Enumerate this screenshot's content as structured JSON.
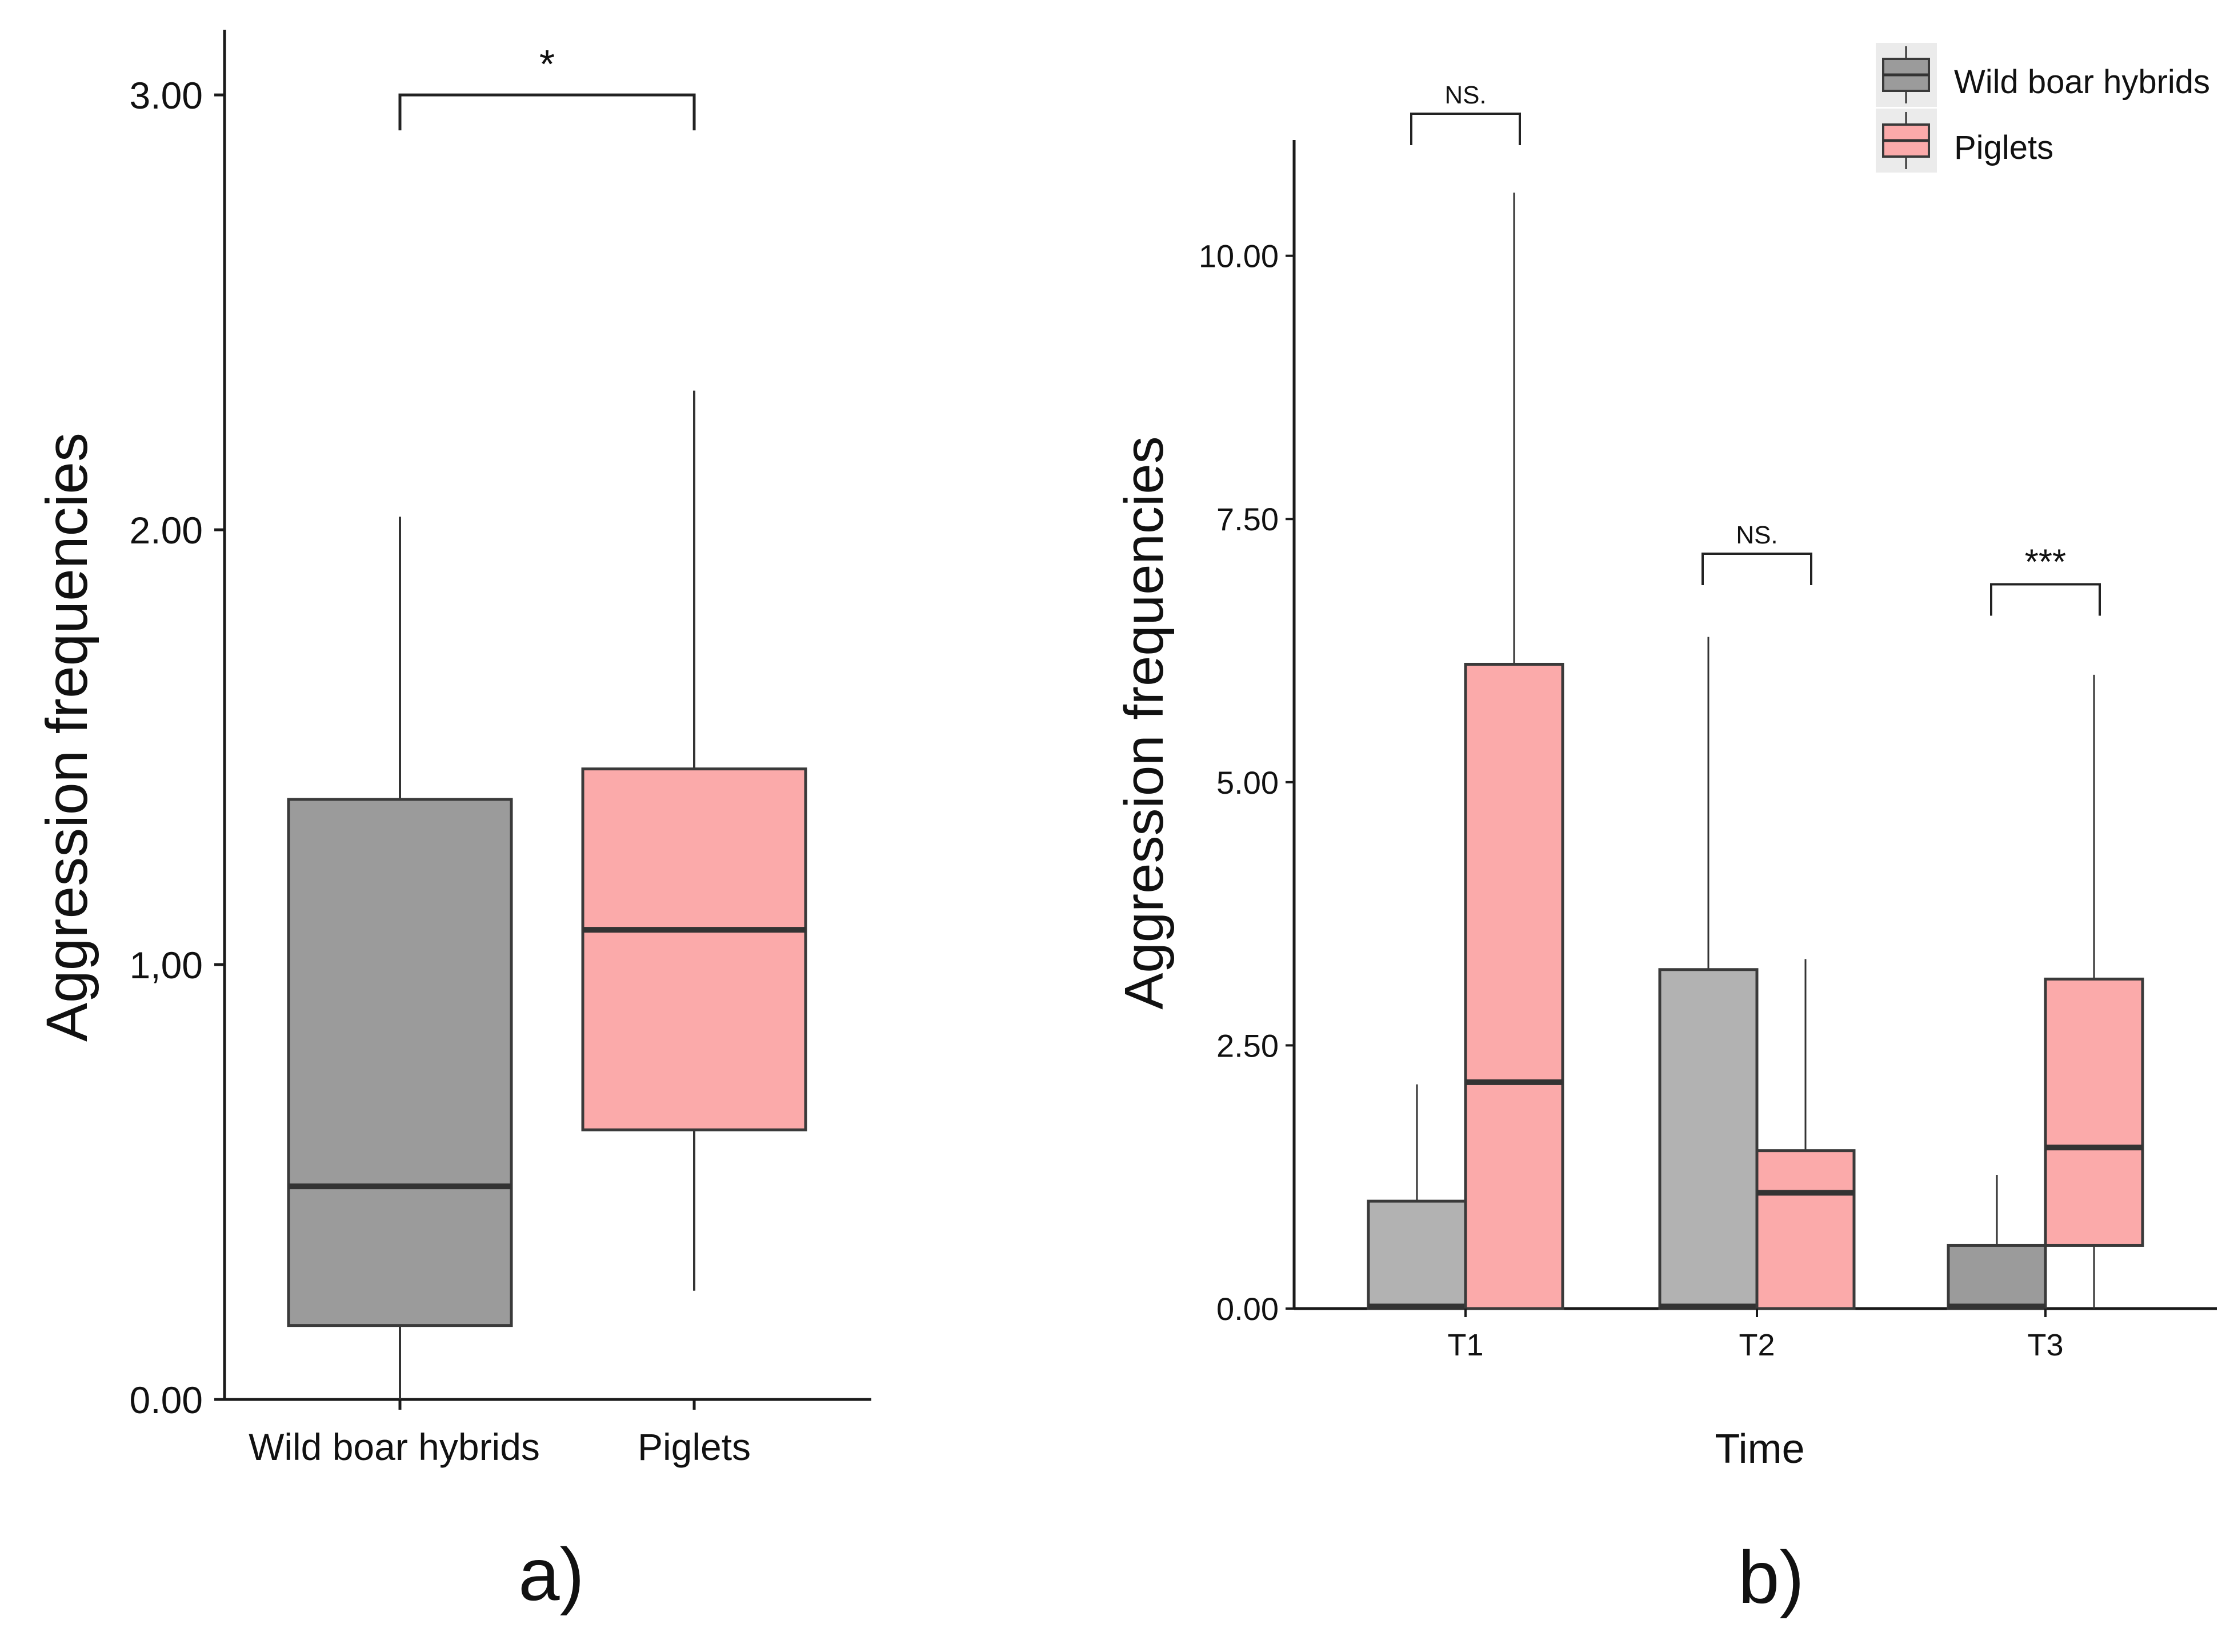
{
  "colors": {
    "wild_boar": "#9b9b9b",
    "wild_boar_light": "#b2b2b2",
    "piglets": "#fbaaaa",
    "outline": "#3a3a3a",
    "median": "#333333",
    "axis": "#1a1a1a",
    "legend_bg": "#ebebeb"
  },
  "chart_data": [
    {
      "type": "boxplot",
      "panel_label": "a)",
      "title": "",
      "xlabel": "",
      "ylabel": "Aggression frequencies",
      "ylim": [
        0,
        3.15
      ],
      "y_tick_values": [
        0,
        1,
        2,
        3
      ],
      "y_tick_labels": [
        "0.00",
        "1,00",
        "2.00",
        "3.00"
      ],
      "categories": [
        "Wild boar hybrids",
        "Piglets"
      ],
      "boxes": [
        {
          "group": "Wild boar hybrids",
          "min": 0.0,
          "q1": 0.17,
          "median": 0.49,
          "q3": 1.38,
          "max": 2.03
        },
        {
          "group": "Piglets",
          "min": 0.25,
          "q1": 0.62,
          "median": 1.08,
          "q3": 1.45,
          "max": 2.32
        }
      ],
      "significance": [
        {
          "from": "Wild boar hybrids",
          "to": "Piglets",
          "label": "*",
          "y": 3.0
        }
      ]
    },
    {
      "type": "boxplot",
      "panel_label": "b)",
      "title": "",
      "xlabel": "Time",
      "ylabel": "Aggression frequencies",
      "ylim": [
        0,
        11.1
      ],
      "y_tick_values": [
        0,
        2.5,
        5,
        7.5,
        10
      ],
      "y_tick_labels": [
        "0.00",
        "2.50",
        "5.00",
        "7.50",
        "10.00"
      ],
      "categories": [
        "T1",
        "T2",
        "T3"
      ],
      "legend": {
        "position": "top-right",
        "entries": [
          "Wild boar hybrids",
          "Piglets"
        ]
      },
      "series": [
        {
          "name": "Wild boar hybrids",
          "boxes": [
            {
              "time": "T1",
              "min": 0.0,
              "q1": 0.0,
              "median": 0.02,
              "q3": 1.02,
              "max": 2.13
            },
            {
              "time": "T2",
              "min": 0.0,
              "q1": 0.0,
              "median": 0.02,
              "q3": 3.22,
              "max": 6.38
            },
            {
              "time": "T3",
              "min": 0.0,
              "q1": 0.0,
              "median": 0.02,
              "q3": 0.6,
              "max": 1.27
            }
          ]
        },
        {
          "name": "Piglets",
          "boxes": [
            {
              "time": "T1",
              "min": 0.0,
              "q1": 0.0,
              "median": 2.15,
              "q3": 6.12,
              "max": 10.6
            },
            {
              "time": "T2",
              "min": 0.0,
              "q1": 0.0,
              "median": 1.1,
              "q3": 1.5,
              "max": 3.32
            },
            {
              "time": "T3",
              "min": 0.0,
              "q1": 0.6,
              "median": 1.53,
              "q3": 3.13,
              "max": 6.02
            }
          ]
        }
      ],
      "significance": [
        {
          "time": "T1",
          "label": "NS.",
          "y": 11.35
        },
        {
          "time": "T2",
          "label": "NS.",
          "y": 7.17
        },
        {
          "time": "T3",
          "label": "***",
          "y": 6.88
        }
      ]
    }
  ]
}
